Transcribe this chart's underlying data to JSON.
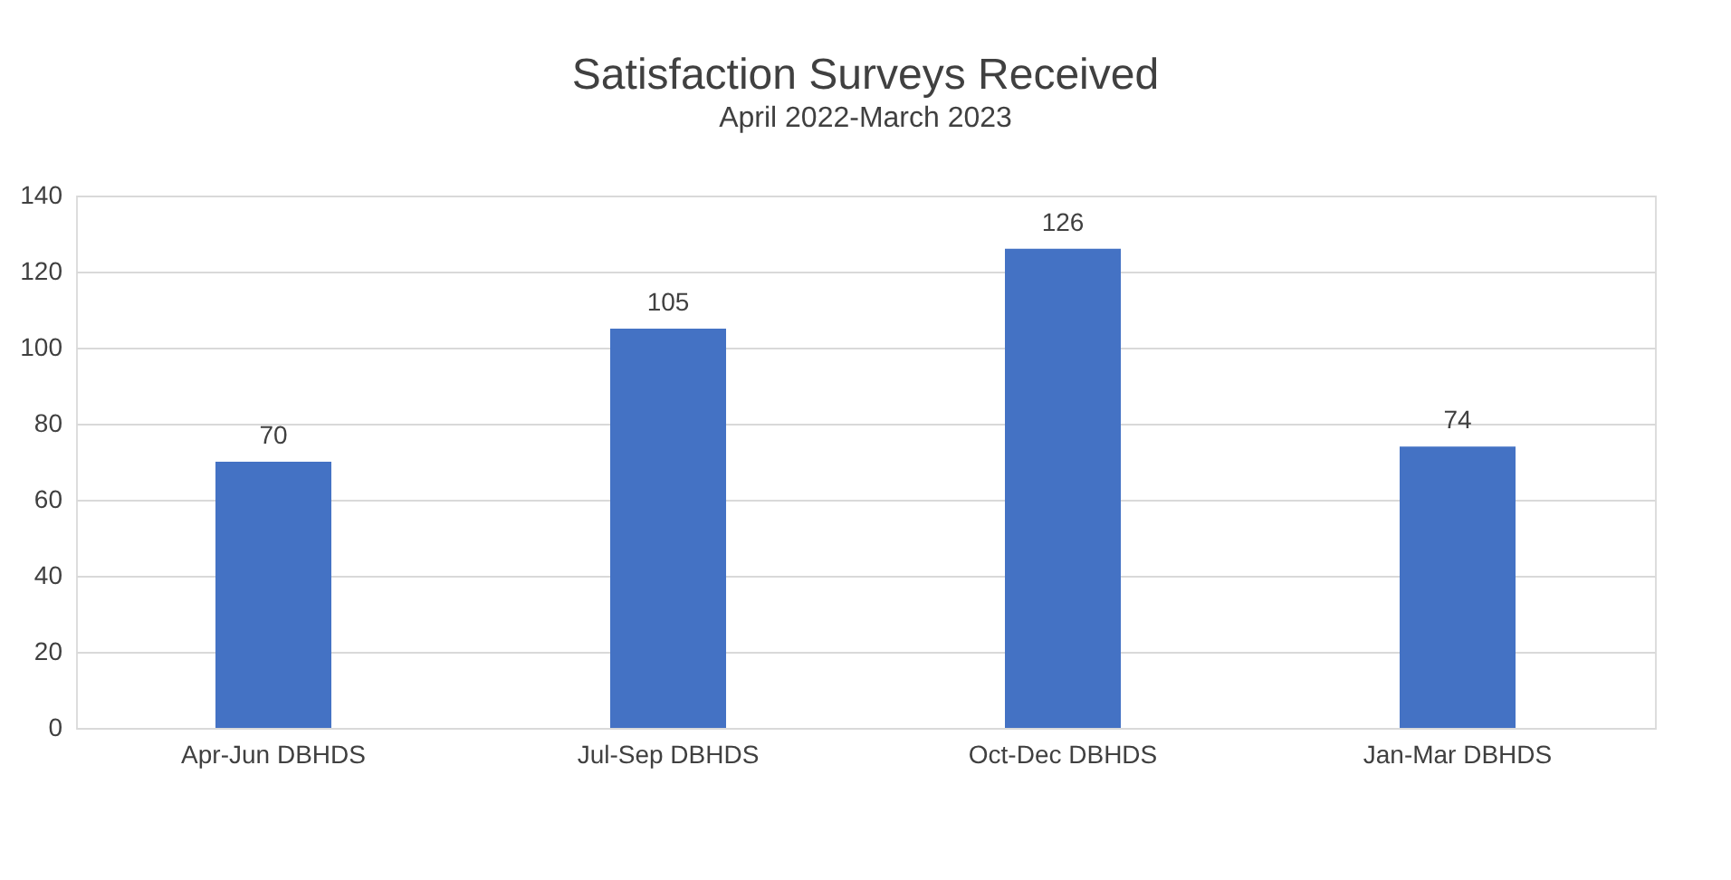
{
  "chart_data": {
    "type": "bar",
    "title": "Satisfaction Surveys Received",
    "subtitle": "April 2022-March 2023",
    "categories": [
      "Apr-Jun DBHDS",
      "Jul-Sep DBHDS",
      "Oct-Dec DBHDS",
      "Jan-Mar DBHDS"
    ],
    "values": [
      70,
      105,
      126,
      74
    ],
    "color": "#4472c4",
    "ylim": [
      0,
      140
    ],
    "yticks": [
      0,
      20,
      40,
      60,
      80,
      100,
      120,
      140
    ],
    "grid": "y",
    "data_labels": true
  }
}
